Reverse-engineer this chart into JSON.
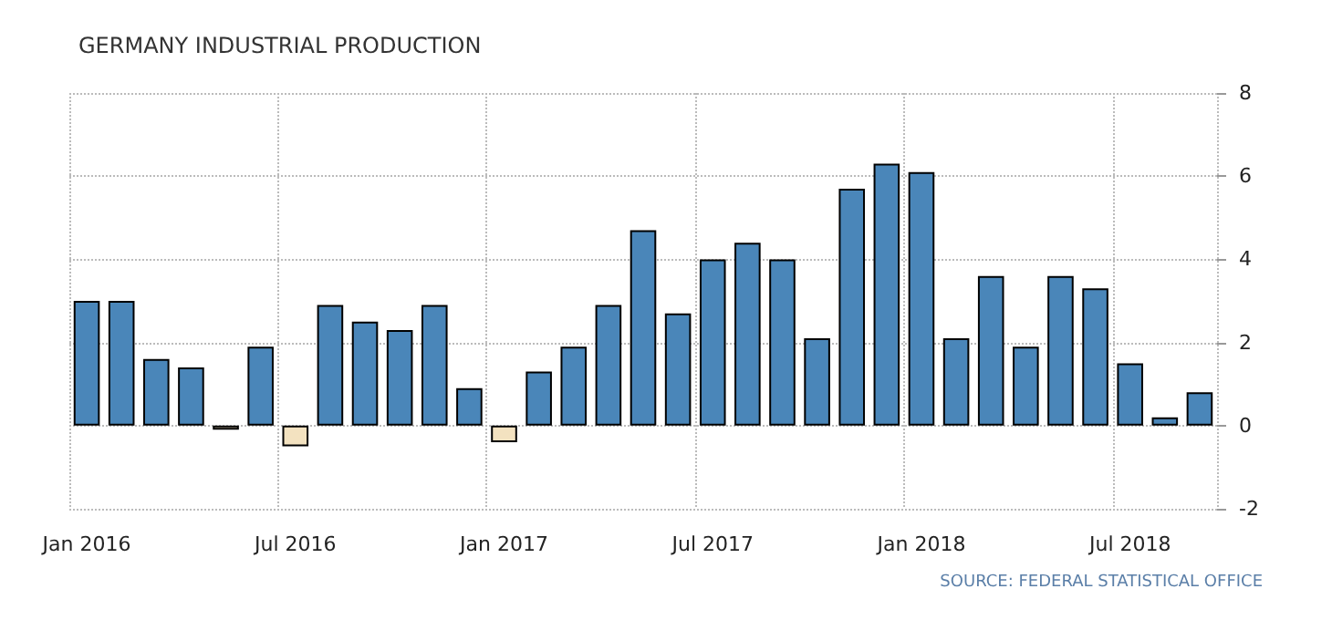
{
  "chart_data": {
    "type": "bar",
    "title": "GERMANY INDUSTRIAL PRODUCTION",
    "categories": [
      "Jan 2016",
      null,
      null,
      null,
      null,
      null,
      "Jul 2016",
      null,
      null,
      null,
      null,
      null,
      "Jan 2017",
      null,
      null,
      null,
      null,
      null,
      "Jul 2017",
      null,
      null,
      null,
      null,
      null,
      "Jan 2018",
      null,
      null,
      null,
      null,
      null,
      "Jul 2018",
      null,
      null
    ],
    "values": [
      3.0,
      3.0,
      1.6,
      1.4,
      -0.1,
      1.9,
      -0.5,
      2.9,
      2.5,
      2.3,
      2.9,
      0.9,
      -0.4,
      1.3,
      1.9,
      2.9,
      4.7,
      2.7,
      4.0,
      4.4,
      4.0,
      2.1,
      5.7,
      6.3,
      6.1,
      2.1,
      3.6,
      1.9,
      3.6,
      3.3,
      1.5,
      0.2,
      0.8
    ],
    "colors": [
      "#4a86b9",
      "#4a86b9",
      "#4a86b9",
      "#4a86b9",
      "#f3e2c0",
      "#4a86b9",
      "#f3e2c0",
      "#4a86b9",
      "#4a86b9",
      "#4a86b9",
      "#4a86b9",
      "#4a86b9",
      "#f3e2c0",
      "#4a86b9",
      "#4a86b9",
      "#4a86b9",
      "#4a86b9",
      "#4a86b9",
      "#4a86b9",
      "#4a86b9",
      "#4a86b9",
      "#4a86b9",
      "#4a86b9",
      "#4a86b9",
      "#4a86b9",
      "#4a86b9",
      "#4a86b9",
      "#4a86b9",
      "#4a86b9",
      "#4a86b9",
      "#4a86b9",
      "#4a86b9",
      "#4a86b9"
    ],
    "ylim": [
      -2,
      8
    ],
    "yticks": [
      -2,
      0,
      2,
      4,
      6,
      8
    ],
    "grid": true,
    "annotations": [
      "SOURCE: FEDERAL STATISTICAL OFFICE"
    ]
  }
}
